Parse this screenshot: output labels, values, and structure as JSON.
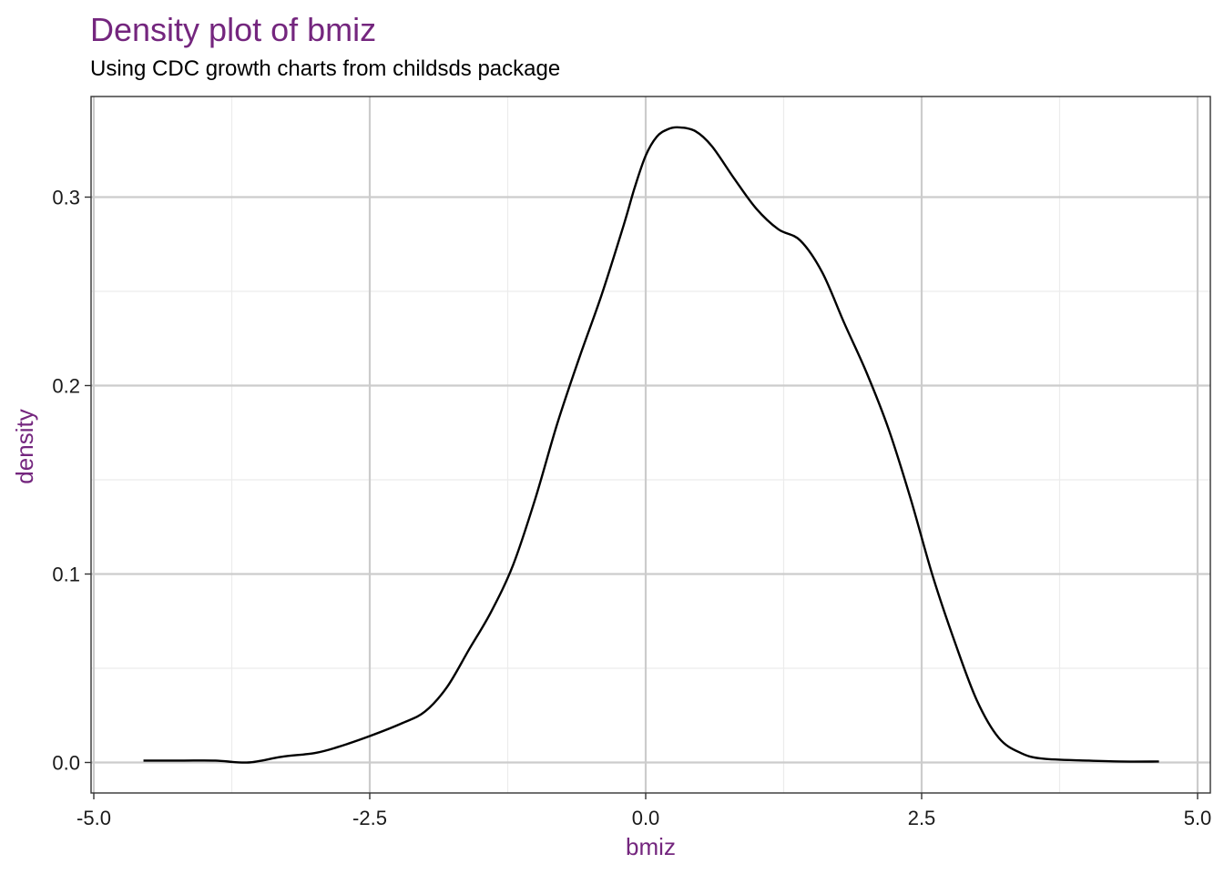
{
  "chart_data": {
    "type": "line",
    "title": "Density plot of bmiz",
    "subtitle": "Using CDC growth charts from childsds package",
    "xlabel": "bmiz",
    "ylabel": "density",
    "xlim": [
      -5.0,
      5.0
    ],
    "ylim": [
      -0.016,
      0.35
    ],
    "x_ticks": [
      -5.0,
      -2.5,
      0.0,
      2.5,
      5.0
    ],
    "x_tick_labels": [
      "-5.0",
      "-2.5",
      "0.0",
      "2.5",
      "5.0"
    ],
    "y_ticks": [
      0.0,
      0.1,
      0.2,
      0.3
    ],
    "y_tick_labels": [
      "0.0",
      "0.1",
      "0.2",
      "0.3"
    ],
    "grid": true,
    "legend": "none",
    "series": [
      {
        "x": [
          -4.55,
          -4.2,
          -3.9,
          -3.6,
          -3.3,
          -3.0,
          -2.8,
          -2.5,
          -2.2,
          -2.0,
          -1.8,
          -1.6,
          -1.4,
          -1.2,
          -1.0,
          -0.8,
          -0.6,
          -0.4,
          -0.2,
          -0.1,
          0.0,
          0.1,
          0.2,
          0.3,
          0.45,
          0.6,
          0.8,
          1.0,
          1.2,
          1.4,
          1.6,
          1.8,
          2.0,
          2.2,
          2.4,
          2.6,
          2.8,
          3.0,
          3.2,
          3.4,
          3.6,
          4.0,
          4.3,
          4.65
        ],
        "y": [
          0.001,
          0.001,
          0.001,
          0.0,
          0.003,
          0.005,
          0.008,
          0.014,
          0.021,
          0.027,
          0.04,
          0.06,
          0.08,
          0.105,
          0.14,
          0.18,
          0.215,
          0.248,
          0.285,
          0.305,
          0.322,
          0.332,
          0.336,
          0.337,
          0.335,
          0.327,
          0.31,
          0.294,
          0.283,
          0.277,
          0.26,
          0.233,
          0.207,
          0.177,
          0.14,
          0.099,
          0.064,
          0.033,
          0.013,
          0.005,
          0.002,
          0.001,
          0.0005,
          0.0005
        ]
      }
    ],
    "colors": {
      "title": "#74267e",
      "axis_title": "#74267e",
      "line": "#000000",
      "grid_major": "#cccccc",
      "grid_minor": "#ececec",
      "panel_border": "#333333"
    }
  }
}
